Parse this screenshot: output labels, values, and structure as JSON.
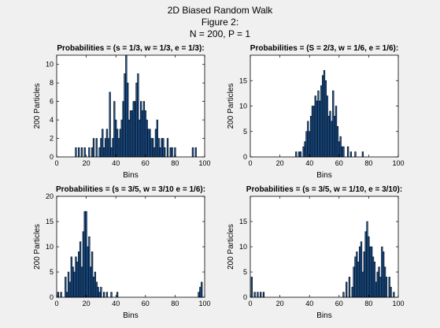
{
  "figure": {
    "title_lines": [
      "2D Biased Random Walk",
      "Figure 2:",
      "N = 200, P = 1"
    ],
    "bar_color": "#1f5fa8",
    "bar_edge": "#000000",
    "axes_bg": "#ffffff",
    "figure_bg": "#f0f0f0"
  },
  "chart_data": [
    {
      "type": "bar",
      "title": "Probabilities = (s = 1/3, w = 1/3, e = 1/3):",
      "xlabel": "Bins",
      "ylabel": "200 Particles",
      "xlim": [
        0,
        100
      ],
      "ylim": [
        0,
        11
      ],
      "xticks": [
        0,
        20,
        40,
        60,
        80,
        100
      ],
      "yticks": [
        0,
        2,
        4,
        6,
        8,
        10
      ],
      "grid": false,
      "x": [
        13,
        15,
        17,
        19,
        22,
        24,
        25,
        27,
        29,
        30,
        31,
        32,
        33,
        34,
        35,
        36,
        37,
        38,
        39,
        40,
        41,
        42,
        43,
        44,
        45,
        46,
        47,
        48,
        49,
        50,
        51,
        52,
        53,
        54,
        55,
        56,
        57,
        58,
        59,
        60,
        61,
        62,
        63,
        64,
        65,
        66,
        67,
        68,
        69,
        70,
        71,
        72,
        73,
        75,
        77,
        78,
        80,
        92,
        94
      ],
      "values": [
        1,
        1,
        1,
        1,
        1,
        1,
        2,
        2,
        1,
        2,
        3,
        1,
        2,
        3,
        2,
        7,
        1,
        2,
        6,
        4,
        3,
        2,
        3,
        4,
        6,
        9,
        11,
        8,
        4,
        5,
        5,
        6,
        6,
        8,
        9,
        4,
        6,
        5,
        6,
        5,
        4,
        3,
        3,
        2,
        2,
        1,
        3,
        4,
        2,
        1,
        2,
        2,
        1,
        2,
        1,
        1,
        1,
        1,
        1
      ]
    },
    {
      "type": "bar",
      "title": "Probabilities = (S = 2/3, w = 1/6, e = 1/6):",
      "xlabel": "Bins",
      "ylabel": "200 Particles",
      "xlim": [
        0,
        100
      ],
      "ylim": [
        0,
        20
      ],
      "xticks": [
        0,
        20,
        40,
        60,
        80,
        100
      ],
      "yticks": [
        0,
        5,
        10,
        15
      ],
      "grid": false,
      "x": [
        31,
        33,
        34,
        36,
        37,
        38,
        39,
        40,
        41,
        42,
        43,
        44,
        45,
        46,
        47,
        48,
        49,
        50,
        51,
        52,
        53,
        54,
        55,
        56,
        57,
        58,
        59,
        60,
        61,
        62,
        63,
        66,
        68,
        71,
        76
      ],
      "values": [
        1,
        1,
        1,
        2,
        3,
        5,
        7,
        5,
        8,
        10,
        10,
        12,
        11,
        13,
        11,
        14,
        16,
        17,
        15,
        12,
        8,
        9,
        7,
        13,
        8,
        10,
        6,
        3,
        4,
        2,
        2,
        2,
        1,
        1,
        1
      ]
    },
    {
      "type": "bar",
      "title": "Probabilities = (s = 3/5, w = 3/10 e = 1/6):",
      "xlabel": "Bins",
      "ylabel": "200 Particles",
      "xlim": [
        0,
        100
      ],
      "ylim": [
        0,
        20
      ],
      "xticks": [
        0,
        20,
        40,
        60,
        80,
        100
      ],
      "yticks": [
        0,
        5,
        10,
        15,
        20
      ],
      "grid": false,
      "x": [
        1,
        3,
        6,
        7,
        8,
        9,
        10,
        11,
        12,
        13,
        14,
        15,
        16,
        17,
        18,
        19,
        20,
        21,
        22,
        23,
        24,
        25,
        26,
        27,
        28,
        29,
        30,
        32,
        34,
        37,
        41,
        96,
        97,
        98
      ],
      "values": [
        1,
        1,
        4,
        1,
        5,
        3,
        8,
        6,
        5,
        8,
        7,
        9,
        11,
        6,
        13,
        17,
        17,
        10,
        12,
        6,
        9,
        4,
        5,
        3,
        2,
        1,
        2,
        1,
        1,
        1,
        1,
        1,
        2,
        3
      ]
    },
    {
      "type": "bar",
      "title": "Probabilities = (s = 3/5, w = 1/10, e = 3/10):",
      "xlabel": "Bins",
      "ylabel": "200 Particles",
      "xlim": [
        0,
        100
      ],
      "ylim": [
        0,
        20
      ],
      "xticks": [
        0,
        20,
        40,
        60,
        80,
        100
      ],
      "yticks": [
        0,
        5,
        10,
        15
      ],
      "grid": false,
      "x": [
        1,
        3,
        5,
        7,
        9,
        63,
        65,
        67,
        69,
        70,
        71,
        72,
        73,
        74,
        75,
        76,
        77,
        78,
        79,
        80,
        81,
        82,
        83,
        84,
        85,
        86,
        87,
        88,
        89,
        90,
        91,
        92,
        94,
        95,
        97
      ],
      "values": [
        4,
        1,
        1,
        1,
        1,
        1,
        3,
        4,
        2,
        6,
        8,
        9,
        7,
        10,
        11,
        5,
        9,
        13,
        15,
        12,
        10,
        10,
        8,
        7,
        3,
        5,
        6,
        4,
        10,
        9,
        6,
        4,
        4,
        2,
        1
      ]
    }
  ]
}
